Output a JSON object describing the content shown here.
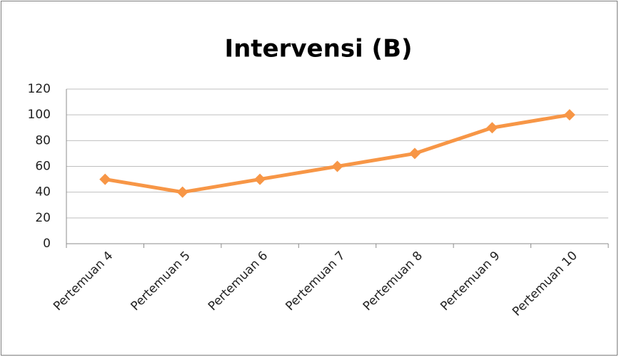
{
  "chart_data": {
    "type": "line",
    "title": "Intervensi (B)",
    "categories": [
      "Pertemuan 4",
      "Pertemuan 5",
      "Pertemuan 6",
      "Pertemuan 7",
      "Pertemuan 8",
      "Pertemuan 9",
      "Pertemuan 10"
    ],
    "values": [
      50,
      40,
      50,
      60,
      70,
      90,
      100
    ],
    "color": "#f79646",
    "ylim": [
      0,
      120
    ],
    "yticks": [
      0,
      20,
      40,
      60,
      80,
      100,
      120
    ],
    "grid": true
  }
}
